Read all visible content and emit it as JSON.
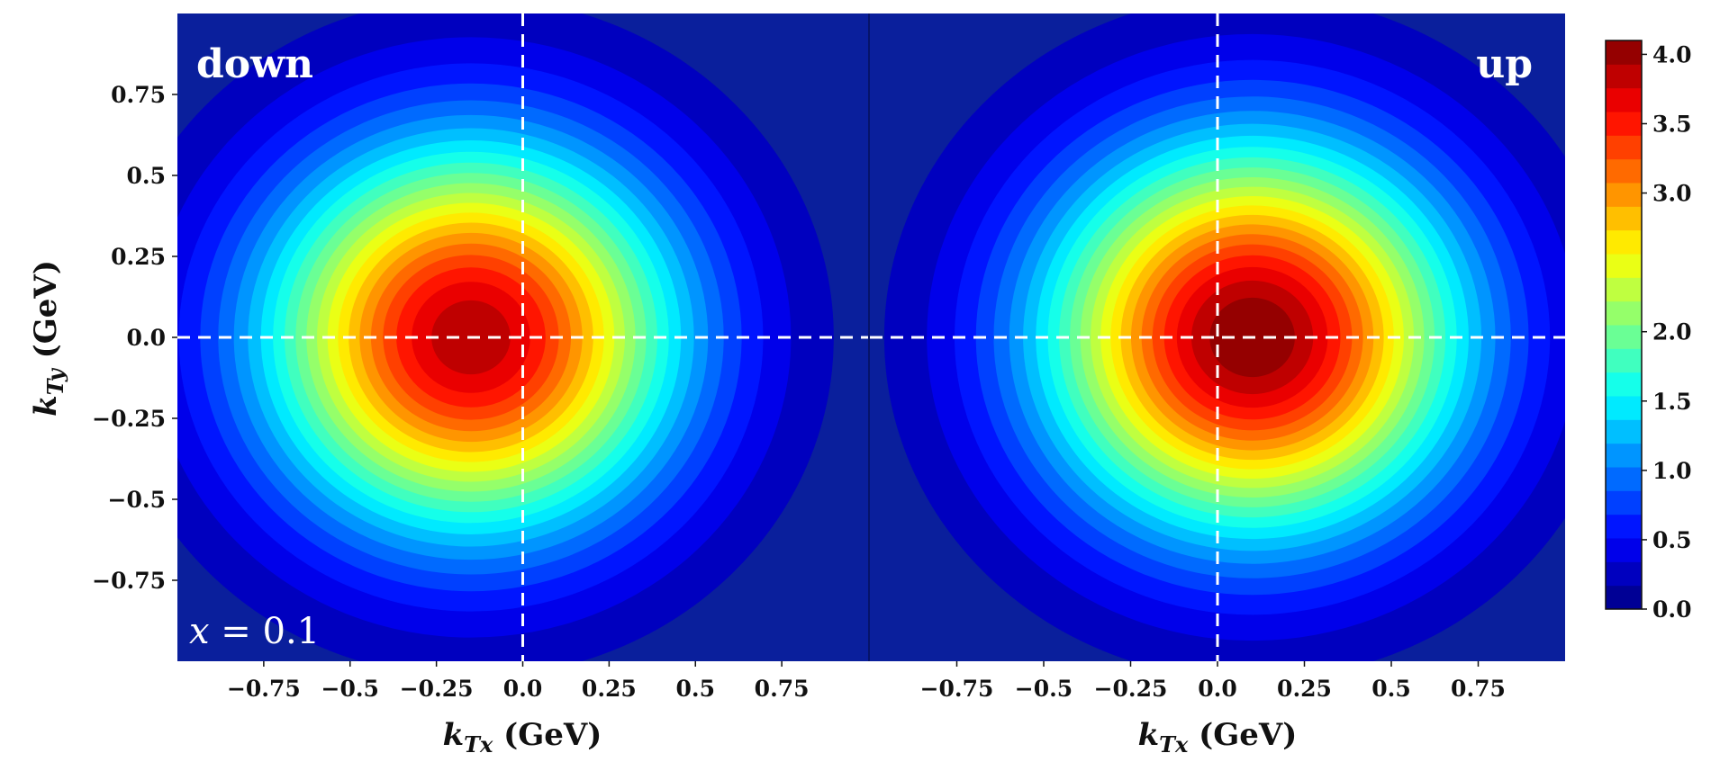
{
  "chart_data": {
    "type": "heatmap",
    "panels": [
      {
        "label": "down",
        "annotation_prefix": "x",
        "annotation_suffix": " = 0.1",
        "center": [
          -0.15,
          0.0
        ],
        "peak": 3.9,
        "width": 0.42,
        "xlim": [
          -1.0,
          1.0
        ],
        "ylim": [
          -1.0,
          1.0
        ]
      },
      {
        "label": "up",
        "annotation": "",
        "center": [
          0.1,
          0.0
        ],
        "peak": 4.1,
        "width": 0.42,
        "xlim": [
          -1.0,
          1.0
        ],
        "ylim": [
          -1.0,
          1.0
        ]
      }
    ],
    "xticks": [
      -0.75,
      -0.5,
      -0.25,
      0.0,
      0.25,
      0.5,
      0.75
    ],
    "xtick_labels": [
      "−0.75",
      "−0.5",
      "−0.25",
      "0.0",
      "0.25",
      "0.5",
      "0.75"
    ],
    "yticks": [
      0.75,
      0.5,
      0.25,
      0.0,
      -0.25,
      -0.5,
      -0.75
    ],
    "ytick_labels": [
      "0.75",
      "0.5",
      "0.25",
      "0.0",
      "−0.25",
      "−0.5",
      "−0.75"
    ],
    "xlabel_symbol": "k",
    "xlabel_sub": "Tx",
    "xlabel_unit": " (GeV)",
    "ylabel_symbol": "k",
    "ylabel_sub": "Ty",
    "ylabel_unit": " (GeV)",
    "colorbar": {
      "min": 0.0,
      "max": 4.1,
      "levels": 24,
      "ticks": [
        4.0,
        3.5,
        3.0,
        2.0,
        1.5,
        1.0,
        0.5,
        0.0
      ],
      "tick_labels": [
        "4.0",
        "3.5",
        "3.0",
        "2.0",
        "1.5",
        "1.0",
        "0.5",
        "0.0"
      ],
      "colormap": "jet"
    },
    "guide_lines": "white dashed lines at x = 0 and y = 0",
    "grid": false
  }
}
